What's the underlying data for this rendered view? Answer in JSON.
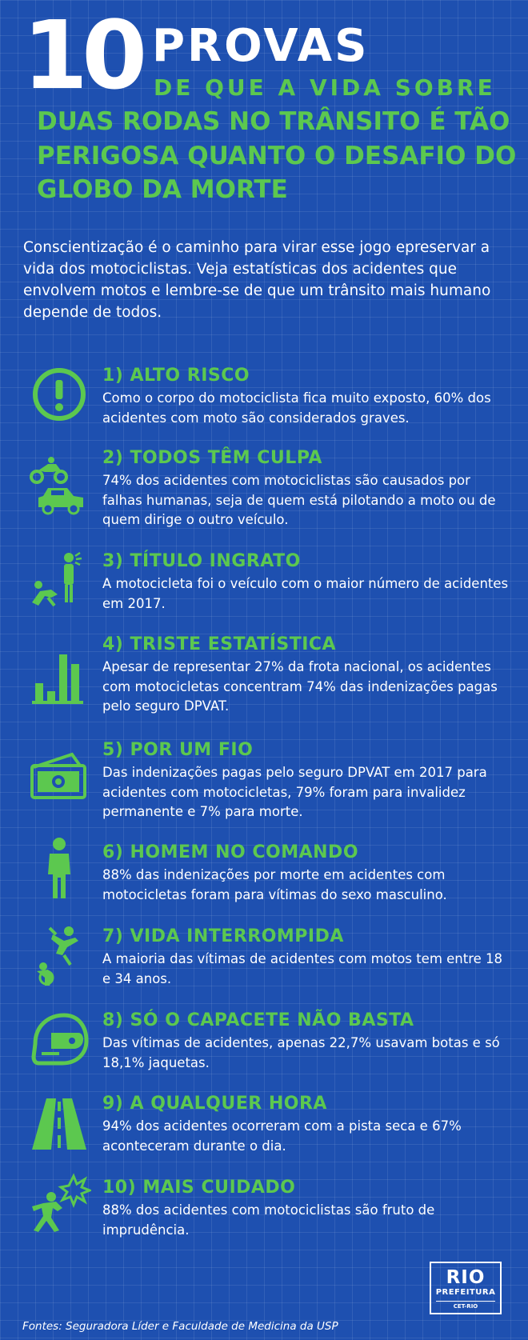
{
  "header": {
    "number": "10",
    "word": "PROVAS",
    "lines": [
      "DE QUE A VIDA SOBRE",
      "DUAS RODAS NO TRÂNSITO É TÃO",
      "PERIGOSA QUANTO O DESAFIO DO",
      "GLOBO DA MORTE"
    ]
  },
  "intro": "Conscientização é o caminho para virar esse jogo epreservar a vida dos motociclistas. Veja estatísticas dos acidentes que envolvem motos e lembre-se de que um trânsito mais humano depende de todos.",
  "colors": {
    "background": "#1e50b0",
    "accent": "#5cc84f",
    "text": "#ffffff"
  },
  "items": [
    {
      "icon": "exclamation-circle-icon",
      "title": "1) ALTO RISCO",
      "text": "Como o corpo do motociclista fica muito exposto, 60% dos acidentes com moto são considerados graves."
    },
    {
      "icon": "motorcycle-car-crash-icon",
      "title": "2) TODOS TÊM CULPA",
      "text": "74% dos acidentes com motociclistas são causados por falhas humanas, seja de quem está pilotando a moto ou de quem dirige o outro veículo."
    },
    {
      "icon": "fallen-person-icon",
      "title": "3) TÍTULO INGRATO",
      "text": "A motocicleta foi o veículo com o maior número de acidentes em 2017."
    },
    {
      "icon": "bar-chart-icon",
      "title": "4) TRISTE ESTATÍSTICA",
      "text": "Apesar de representar 27% da frota nacional, os acidentes com motocicletas concentram 74% das indenizações pagas pelo seguro DPVAT."
    },
    {
      "icon": "money-bills-icon",
      "title": "5) POR UM FIO",
      "text": "Das indenizações pagas pelo seguro DPVAT em 2017 para acidentes com motocicletas, 79% foram para invalidez permanente e 7% para morte."
    },
    {
      "icon": "man-icon",
      "title": "6) HOMEM NO COMANDO",
      "text": "88% das indenizações por morte em acidentes com motocicletas foram para vítimas do sexo masculino."
    },
    {
      "icon": "motorcyclist-thrown-icon",
      "title": "7) VIDA INTERROMPIDA",
      "text": "A maioria das vítimas de acidentes com motos tem entre 18 e 34 anos."
    },
    {
      "icon": "helmet-icon",
      "title": "8) SÓ O CAPACETE NÃO BASTA",
      "text": "Das vítimas de acidentes, apenas 22,7% usavam botas e só 18,1% jaquetas."
    },
    {
      "icon": "road-icon",
      "title": "9) A QUALQUER HORA",
      "text": "94% dos acidentes ocorreram com a pista seca e 67% aconteceram durante o dia."
    },
    {
      "icon": "collision-person-icon",
      "title": "10) MAIS CUIDADO",
      "text": "88% dos acidentes com motociclistas são fruto de imprudência."
    }
  ],
  "logo": {
    "rio": "RIO",
    "prefeitura": "PREFEITURA",
    "sub": "CET-RIO"
  },
  "sources": "Fontes: Seguradora Líder e Faculdade de Medicina da USP"
}
